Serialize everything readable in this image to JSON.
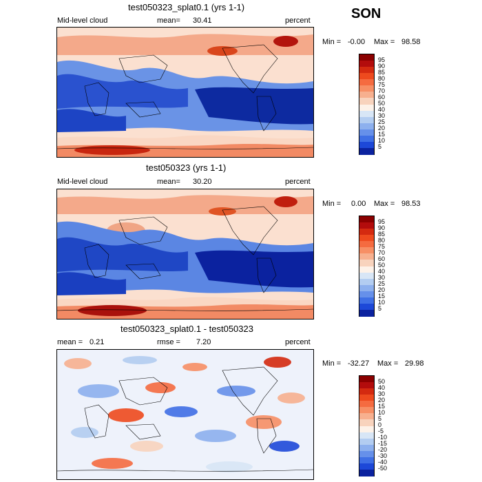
{
  "season": "SON",
  "panels": [
    {
      "title": "test050323_splat0.1 (yrs 1-1)",
      "left_label": "Mid-level cloud",
      "mean_label": "mean=",
      "mean_value": "30.41",
      "unit": "percent",
      "min_label": "Min =",
      "min_value": "-0.00",
      "max_label": "Max =",
      "max_value": "98.58",
      "colorbar_labels": [
        "95",
        "90",
        "85",
        "80",
        "75",
        "70",
        "60",
        "50",
        "40",
        "30",
        "25",
        "20",
        "15",
        "10",
        "5"
      ],
      "colorbar_colors": [
        "#8b0000",
        "#b30c0c",
        "#d42a10",
        "#ee4a1e",
        "#f56b40",
        "#f78f65",
        "#f7b08f",
        "#f8d3bd",
        "#fdf2e9",
        "#d8e6f6",
        "#b3cdf1",
        "#8db0ee",
        "#6690ea",
        "#3f6fe5",
        "#1d48d8",
        "#0b229f"
      ]
    },
    {
      "title": "test050323 (yrs 1-1)",
      "left_label": "Mid-level cloud",
      "mean_label": "mean=",
      "mean_value": "30.20",
      "unit": "percent",
      "min_label": "Min =",
      "min_value": "0.00",
      "max_label": "Max =",
      "max_value": "98.53",
      "colorbar_labels": [
        "95",
        "90",
        "85",
        "80",
        "75",
        "70",
        "60",
        "50",
        "40",
        "30",
        "25",
        "20",
        "15",
        "10",
        "5"
      ],
      "colorbar_colors": [
        "#8b0000",
        "#b30c0c",
        "#d42a10",
        "#ee4a1e",
        "#f56b40",
        "#f78f65",
        "#f7b08f",
        "#f8d3bd",
        "#fdf2e9",
        "#d8e6f6",
        "#b3cdf1",
        "#8db0ee",
        "#6690ea",
        "#3f6fe5",
        "#1d48d8",
        "#0b229f"
      ]
    },
    {
      "title": "test050323_splat0.1 - test050323",
      "left_label": "mean =",
      "left_value": "0.21",
      "mean_label": "rmse =",
      "mean_value": "7.20",
      "unit": "percent",
      "min_label": "Min =",
      "min_value": "-32.27",
      "max_label": "Max =",
      "max_value": "29.98",
      "colorbar_labels": [
        "50",
        "40",
        "30",
        "20",
        "15",
        "10",
        "5",
        "0",
        "-5",
        "-10",
        "-15",
        "-20",
        "-30",
        "-40",
        "-50"
      ],
      "colorbar_colors": [
        "#8b0000",
        "#b30c0c",
        "#d42a10",
        "#ee4a1e",
        "#f56b40",
        "#f78f65",
        "#f7b08f",
        "#f8d3bd",
        "#fdf2e9",
        "#d8e6f6",
        "#b3cdf1",
        "#8db0ee",
        "#6690ea",
        "#3f6fe5",
        "#1d48d8",
        "#0b229f"
      ]
    }
  ]
}
